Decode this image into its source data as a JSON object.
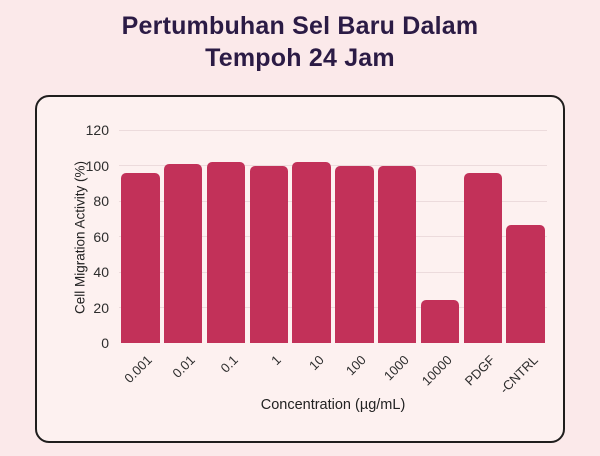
{
  "page": {
    "title": "Pertumbuhan Sel Baru Dalam Tempoh 24 Jam",
    "background_color": "#fbe9ea",
    "title_color": "#2b1b45"
  },
  "chart_data": {
    "type": "bar",
    "title": "Pertumbuhan Sel Baru Dalam Tempoh 24 Jam",
    "categories": [
      "0.001",
      "0.01",
      "0.1",
      "1",
      "10",
      "100",
      "1000",
      "10000",
      "PDGF",
      "-CNTRL"
    ],
    "values": [
      96,
      101,
      102,
      99.5,
      102,
      100,
      100,
      24,
      95.5,
      66.5
    ],
    "xlabel": "Concentration (µg/mL)",
    "ylabel": "Cell Migration Activity (%)",
    "ylim": [
      0,
      120
    ],
    "yticks": [
      0,
      20,
      40,
      60,
      80,
      100,
      120
    ],
    "grid": true,
    "legend": false,
    "bar_color": "#c23159",
    "panel_background": "#fdf1f0",
    "panel_border_color": "#1f1d1d",
    "gridline_color": "#ecdbdc",
    "axis_text_color": "#2d2d2d"
  }
}
